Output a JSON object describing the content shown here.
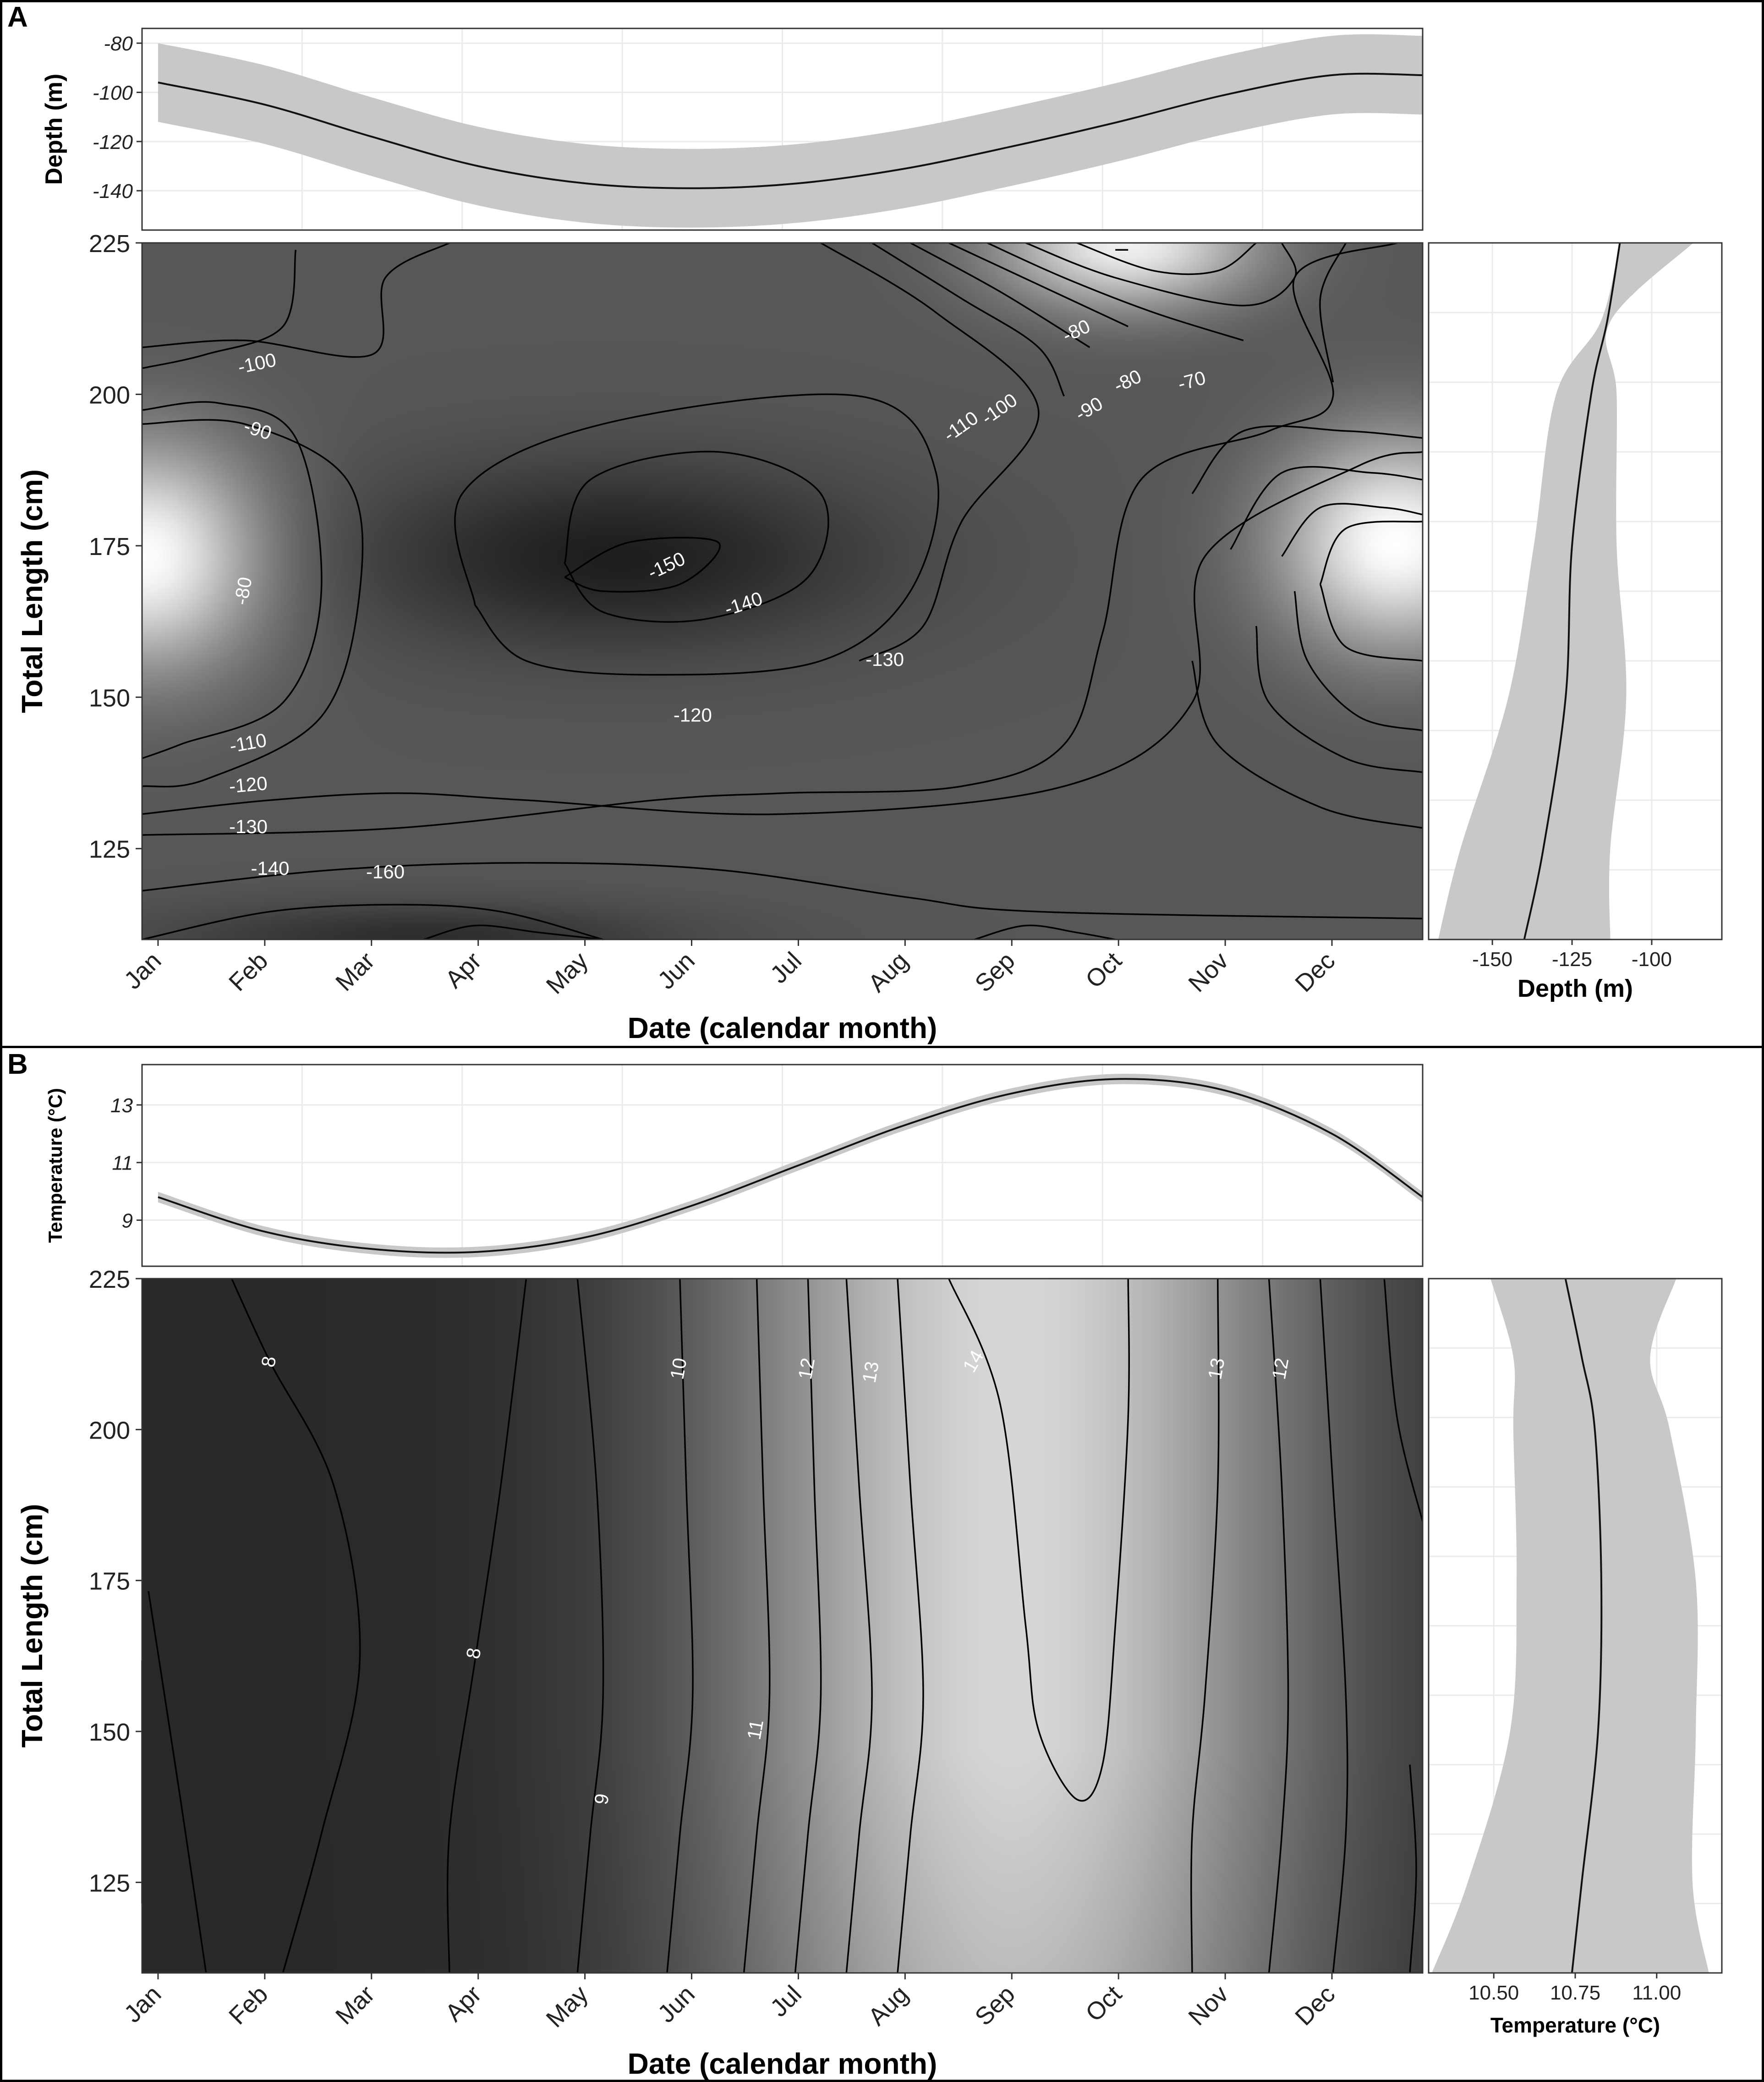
{
  "panels": {
    "a_label": "A",
    "b_label": "B"
  },
  "colors": {
    "contour_line": "#000000",
    "ribbon": "#c8c8c8",
    "grid": "#ebebeb",
    "contour_label": "#ffffff"
  },
  "chart_data": [
    {
      "panel": "A",
      "type": "heatmap",
      "title": "",
      "xlabel": "Date (calendar month)",
      "ylabel": "Total Length (cm)",
      "categories": [
        "Jan",
        "Feb",
        "Mar",
        "Apr",
        "May",
        "Jun",
        "Jul",
        "Aug",
        "Sep",
        "Oct",
        "Nov",
        "Dec"
      ],
      "xlim": [
        0.85,
        12.85
      ],
      "ylim": [
        110,
        225
      ],
      "y_ticks": [
        125,
        150,
        175,
        200,
        225
      ],
      "fill": "greyscale, lighter = shallower depth (m)",
      "contour_labels": [
        "-100",
        "-90",
        "-80",
        "-110",
        "-120",
        "-130",
        "-140",
        "-160",
        "-150",
        "-140",
        "-130",
        "-120",
        "-110",
        "-100",
        "-90",
        "-80",
        "-80",
        "-70"
      ],
      "marginal_top": {
        "type": "line",
        "ylabel": "Depth (m)",
        "y_ticks": [
          "-80",
          "-100",
          "-120",
          "-140"
        ],
        "ylim": [
          -156,
          -74
        ],
        "x": [
          1,
          2,
          3,
          4,
          5,
          6,
          7,
          8,
          9,
          10,
          11,
          12,
          12.85
        ],
        "y": [
          -96,
          -105,
          -118,
          -130,
          -137,
          -139,
          -137,
          -131,
          -122,
          -112,
          -101,
          -93,
          -93
        ],
        "band_half_width": 16
      },
      "marginal_right": {
        "type": "line",
        "xlabel": "Depth (m)",
        "x_ticks": [
          "-150",
          "-125",
          "-100"
        ],
        "xlim": [
          -170,
          -78
        ],
        "y": [
          110,
          125,
          150,
          175,
          200,
          212,
          225
        ],
        "x": [
          -140,
          -134,
          -127,
          -125,
          -119,
          -114,
          -110
        ],
        "band_low": [
          -167,
          -160,
          -145,
          -137,
          -130,
          -116,
          -110
        ],
        "band_high": [
          -113,
          -113,
          -108,
          -111,
          -111,
          -113,
          -87
        ]
      }
    },
    {
      "panel": "B",
      "type": "heatmap",
      "title": "",
      "xlabel": "Date (calendar month)",
      "ylabel": "Total Length (cm)",
      "categories": [
        "Jan",
        "Feb",
        "Mar",
        "Apr",
        "May",
        "Jun",
        "Jul",
        "Aug",
        "Sep",
        "Oct",
        "Nov",
        "Dec"
      ],
      "xlim": [
        0.85,
        12.85
      ],
      "ylim": [
        110,
        225
      ],
      "y_ticks": [
        125,
        150,
        175,
        200,
        225
      ],
      "fill": "greyscale, lighter = warmer temperature (°C)",
      "contour_labels": [
        "8",
        "10",
        "12",
        "13",
        "14",
        "13",
        "12",
        "8",
        "11",
        "9"
      ],
      "marginal_top": {
        "type": "line",
        "ylabel": "Temperature (°C)",
        "y_ticks": [
          "9",
          "11",
          "13"
        ],
        "ylim": [
          7.4,
          14.4
        ],
        "x": [
          1,
          2,
          3,
          4,
          5,
          6,
          7,
          8,
          9,
          10,
          11,
          12,
          12.85
        ],
        "y": [
          9.8,
          8.6,
          8.0,
          7.9,
          8.4,
          9.5,
          10.9,
          12.3,
          13.4,
          13.9,
          13.5,
          12.0,
          9.8
        ],
        "band_half_width": 0.18
      },
      "marginal_right": {
        "type": "line",
        "xlabel": "Temperature (°C)",
        "x_ticks": [
          "10.50",
          "10.75",
          "11.00"
        ],
        "xlim": [
          10.3,
          11.2
        ],
        "y": [
          110,
          125,
          150,
          175,
          200,
          212,
          225
        ],
        "x": [
          10.74,
          10.77,
          10.82,
          10.83,
          10.81,
          10.77,
          10.72
        ],
        "band_low": [
          10.31,
          10.42,
          10.55,
          10.57,
          10.56,
          10.56,
          10.49
        ],
        "band_high": [
          11.16,
          11.11,
          11.12,
          11.12,
          11.04,
          10.98,
          11.06
        ]
      }
    }
  ]
}
